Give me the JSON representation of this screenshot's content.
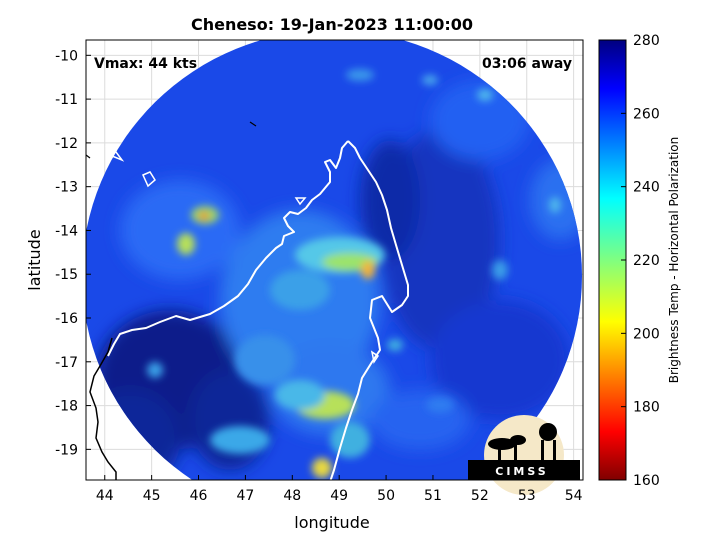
{
  "title": "Cheneso: 19-Jan-2023 11:00:00",
  "overlay": {
    "vmax": "Vmax: 44 kts",
    "away": "03:06 away"
  },
  "axes": {
    "xlabel": "longitude",
    "ylabel": "latitude",
    "xticks": [
      "44",
      "45",
      "46",
      "47",
      "48",
      "49",
      "50",
      "51",
      "52",
      "53",
      "54"
    ],
    "yticks": [
      "-10",
      "-11",
      "-12",
      "-13",
      "-14",
      "-15",
      "-16",
      "-17",
      "-18",
      "-19"
    ],
    "xlim": [
      43.6,
      54.2
    ],
    "ylim": [
      -19.7,
      -9.65
    ],
    "grid": true
  },
  "colorbar": {
    "label": "Brightness Temp - Horizontal Polarization",
    "ticks": [
      "280",
      "260",
      "240",
      "220",
      "200",
      "180",
      "160"
    ],
    "range": [
      160,
      280
    ],
    "colormap": "jet"
  },
  "logo": {
    "text": "CIMSS"
  },
  "colors": {
    "background_ocean": "#1a49e8",
    "deep": "#0a1f8a",
    "coastline": "#ffffff",
    "land_outline": "#000000"
  }
}
